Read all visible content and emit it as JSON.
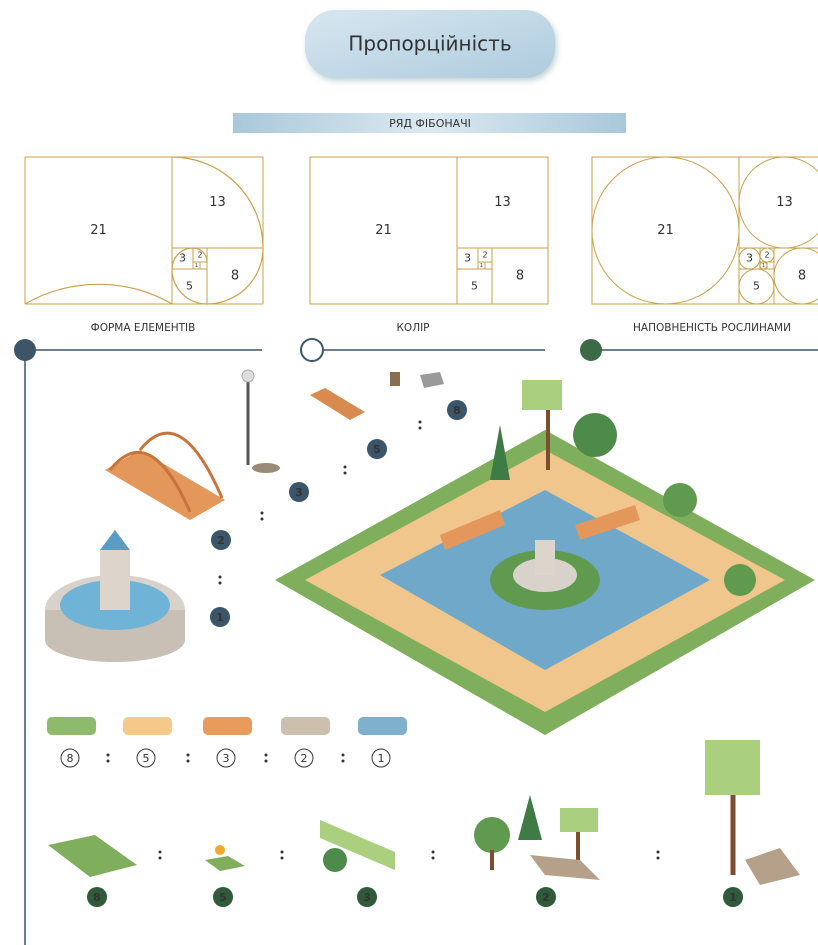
{
  "header": {
    "title": "Пропорційність",
    "banner": "РЯД ФІБОНАЧІ"
  },
  "fibonacci_panels": [
    {
      "label": "ФОРМА ЕЛЕМЕНТІВ",
      "cells": [
        21,
        13,
        8,
        5,
        3,
        2,
        1
      ]
    },
    {
      "label": "КОЛІР",
      "cells": [
        21,
        13,
        8,
        5,
        3,
        2,
        1
      ]
    },
    {
      "label": "НАПОВНЕНІСТЬ РОСЛИНАМИ",
      "cells": [
        21,
        13,
        8,
        5,
        3,
        2,
        1
      ]
    }
  ],
  "element_badges": [
    3,
    2,
    1
  ],
  "park_badges": [
    5,
    8
  ],
  "color_ratio": {
    "values": [
      8,
      5,
      3,
      2,
      1
    ]
  },
  "plant_badges": [
    8,
    5,
    3,
    2,
    1
  ]
}
